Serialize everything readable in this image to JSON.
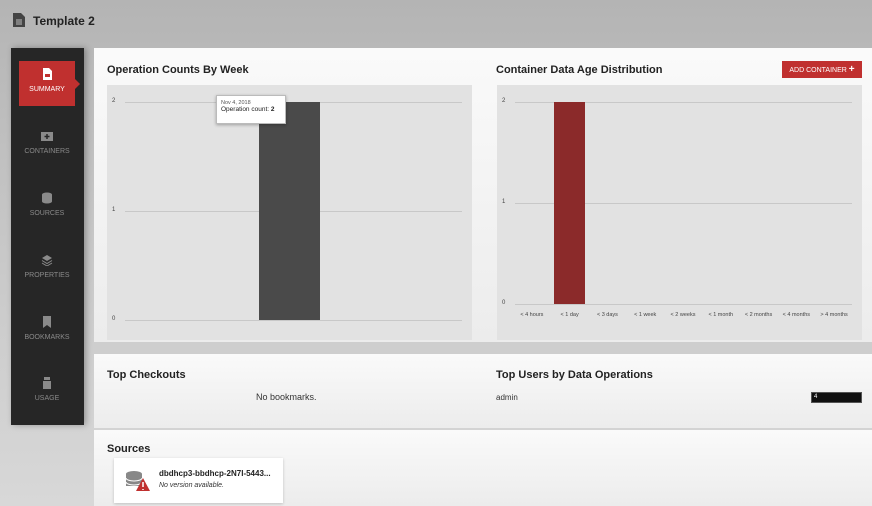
{
  "header": {
    "title": "Template 2",
    "icon": "document-icon"
  },
  "sidebar": {
    "items": [
      {
        "label": "SUMMARY",
        "icon": "summary-icon",
        "active": true
      },
      {
        "label": "CONTAINERS",
        "icon": "container-icon"
      },
      {
        "label": "SOURCES",
        "icon": "database-icon"
      },
      {
        "label": "PROPERTIES",
        "icon": "layers-icon"
      },
      {
        "label": "BOOKMARKS",
        "icon": "bookmark-icon"
      },
      {
        "label": "USAGE",
        "icon": "usage-icon"
      }
    ]
  },
  "ops": {
    "title": "Operation Counts By Week",
    "tooltip_date": "Nov 4, 2018",
    "tooltip_label": "Operation count:",
    "tooltip_value": "2"
  },
  "age": {
    "title": "Container Data Age Distribution",
    "add_button": "ADD CONTAINER",
    "accent": "#c0302f"
  },
  "checkouts": {
    "title": "Top Checkouts",
    "empty": "No bookmarks."
  },
  "users": {
    "title": "Top Users by Data Operations",
    "rows": [
      {
        "name": "admin",
        "count": "4"
      }
    ]
  },
  "sources": {
    "title": "Sources",
    "items": [
      {
        "name": "dbdhcp3-bbdhcp-2N7I-5443...",
        "status": "No version available.",
        "icon": "database-warning-icon"
      }
    ]
  },
  "chart_data": [
    {
      "type": "bar",
      "title": "Operation Counts By Week",
      "categories": [
        "Nov 4, 2018"
      ],
      "values": [
        2
      ],
      "ylim": [
        0,
        2
      ],
      "yticks": [
        "0",
        "1",
        "2"
      ],
      "grid": true,
      "color": "#4a4a4a"
    },
    {
      "type": "bar",
      "title": "Container Data Age Distribution",
      "categories": [
        "< 4 hours",
        "< 1 day",
        "< 3 days",
        "< 1 week",
        "< 2 weeks",
        "< 1 month",
        "< 2 months",
        "< 4 months",
        "> 4 months"
      ],
      "values": [
        0,
        2,
        0,
        0,
        0,
        0,
        0,
        0,
        0
      ],
      "ylim": [
        0,
        2
      ],
      "yticks": [
        "0",
        "1",
        "2"
      ],
      "grid": true,
      "color": "#8b2a2a"
    }
  ]
}
